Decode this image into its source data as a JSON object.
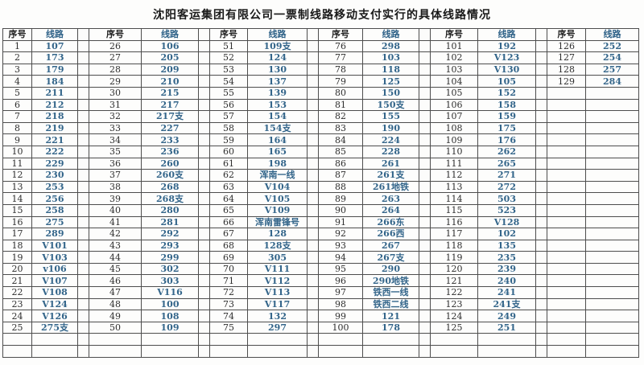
{
  "title": "沈阳客运集团有限公司一票制线路移动支付实行的具体线路情况",
  "headers": {
    "index": "序号",
    "route": "线路"
  },
  "colors": {
    "route_text": "#33658a",
    "index_text": "#2e2e2e",
    "border": "#4d4d4d"
  },
  "table": {
    "data_rows": 25,
    "trailing_empty_rows": 2,
    "column_groups": [
      {
        "start_index": 1,
        "routes": [
          "107",
          "173",
          "179",
          "184",
          "211",
          "212",
          "218",
          "219",
          "221",
          "222",
          "229",
          "230",
          "253",
          "256",
          "258",
          "275",
          "289",
          "V101",
          "V103",
          "v106",
          "V107",
          "V108",
          "V124",
          "V126",
          "275支"
        ]
      },
      {
        "start_index": 26,
        "routes": [
          "106",
          "205",
          "209",
          "210",
          "215",
          "217",
          "217支",
          "227",
          "233",
          "236",
          "260",
          "260支",
          "268",
          "268支",
          "280",
          "281",
          "292",
          "293",
          "299",
          "302",
          "303",
          "V116",
          "100",
          "108",
          "109"
        ]
      },
      {
        "start_index": 51,
        "routes": [
          "109支",
          "124",
          "130",
          "137",
          "139",
          "153",
          "154",
          "154支",
          "164",
          "165",
          "198",
          "浑南一线",
          "V104",
          "V105",
          "V109",
          "浑南雷锋号",
          "128",
          "128支",
          "305",
          "V111",
          "V112",
          "V113",
          "V117",
          "132",
          "297"
        ]
      },
      {
        "start_index": 76,
        "routes": [
          "298",
          "103",
          "118",
          "125",
          "150",
          "150支",
          "155",
          "190",
          "224",
          "228",
          "261",
          "261支",
          "261地铁",
          "263",
          "264",
          "266东",
          "266西",
          "267",
          "267支",
          "290",
          "290地铁",
          "铁西一线",
          "铁西二线",
          "121",
          "178"
        ]
      },
      {
        "start_index": 101,
        "routes": [
          "192",
          "V123",
          "V130",
          "105",
          "152",
          "158",
          "159",
          "175",
          "176",
          "262",
          "265",
          "271",
          "272",
          "503",
          "523",
          "V128",
          "102",
          "135",
          "235",
          "239",
          "240",
          "241",
          "241支",
          "249",
          "251"
        ]
      },
      {
        "start_index": 126,
        "routes": [
          "252",
          "254",
          "257",
          "284"
        ]
      }
    ]
  }
}
